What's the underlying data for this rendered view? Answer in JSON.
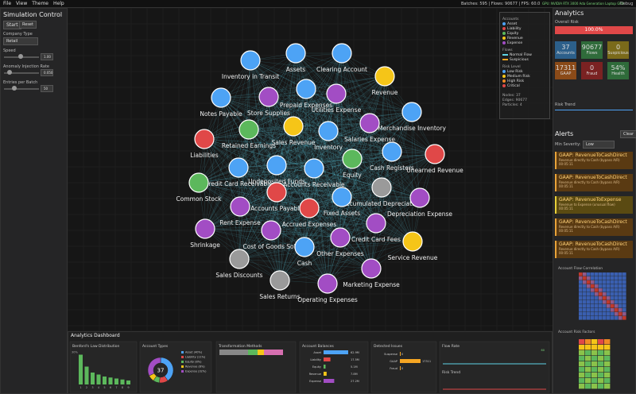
{
  "menu": [
    "File",
    "View",
    "Theme",
    "Help"
  ],
  "status": {
    "batches": "Batches: 595 | Flows: 90677 | FPS: 60.0",
    "gpu": "GPU: NVIDIA RTX 3000 Ada Generation Laptop GPU",
    "debug": "Debug"
  },
  "sim": {
    "title": "Simulation Control",
    "start": "Start",
    "reset": "Reset",
    "company_label": "Company Type",
    "company": "Retail",
    "speed_label": "Speed",
    "speed": "1.00",
    "anomaly_label": "Anomaly Injection Rate",
    "anomaly": "0.050",
    "entries_label": "Entries per Batch",
    "entries": "50"
  },
  "graph": {
    "nodes": [
      {
        "label": "Assets",
        "color": "#4da3f5"
      },
      {
        "label": "Clearing Account",
        "color": "#4da3f5"
      },
      {
        "label": "Inventory in Transit",
        "color": "#4da3f5"
      },
      {
        "label": "Revenue",
        "color": "#f5c518"
      },
      {
        "label": "Notes Payable",
        "color": "#4da3f5"
      },
      {
        "label": "Store Supplies",
        "color": "#a24dc4"
      },
      {
        "label": "Prepaid Expenses",
        "color": "#4da3f5"
      },
      {
        "label": "Utilities Expense",
        "color": "#a24dc4"
      },
      {
        "label": "Merchandise Inventory",
        "color": "#4da3f5"
      },
      {
        "label": "Sales Revenue",
        "color": "#f5c518"
      },
      {
        "label": "Retained Earnings",
        "color": "#5cb85c"
      },
      {
        "label": "Salaries Expense",
        "color": "#a24dc4"
      },
      {
        "label": "Inventory",
        "color": "#4da3f5"
      },
      {
        "label": "Liabilities",
        "color": "#e04848"
      },
      {
        "label": "Cash Registers",
        "color": "#4da3f5"
      },
      {
        "label": "Unearned Revenue",
        "color": "#e04848"
      },
      {
        "label": "Equity",
        "color": "#5cb85c"
      },
      {
        "label": "Undeposited Funds",
        "color": "#4da3f5"
      },
      {
        "label": "Accounts Receivable",
        "color": "#4da3f5"
      },
      {
        "label": "Credit Card Receivable",
        "color": "#4da3f5"
      },
      {
        "label": "Common Stock",
        "color": "#5cb85c"
      },
      {
        "label": "Accounts Payable",
        "color": "#e04848"
      },
      {
        "label": "Accumulated Depreciation",
        "color": "#9a9a9a"
      },
      {
        "label": "Depreciation Expense",
        "color": "#a24dc4"
      },
      {
        "label": "Fixed Assets",
        "color": "#4da3f5"
      },
      {
        "label": "Rent Expense",
        "color": "#a24dc4"
      },
      {
        "label": "Accrued Expenses",
        "color": "#e04848"
      },
      {
        "label": "Credit Card Fees",
        "color": "#a24dc4"
      },
      {
        "label": "Shrinkage",
        "color": "#a24dc4"
      },
      {
        "label": "Cost of Goods Sold",
        "color": "#a24dc4"
      },
      {
        "label": "Other Expenses",
        "color": "#a24dc4"
      },
      {
        "label": "Cash",
        "color": "#4da3f5"
      },
      {
        "label": "Service Revenue",
        "color": "#f5c518"
      },
      {
        "label": "Sales Discounts",
        "color": "#9a9a9a"
      },
      {
        "label": "Marketing Expense",
        "color": "#a24dc4"
      },
      {
        "label": "Sales Returns",
        "color": "#9a9a9a"
      },
      {
        "label": "Operating Expenses",
        "color": "#a24dc4"
      }
    ],
    "legend": {
      "accounts_title": "Accounts",
      "accounts": [
        {
          "label": "Asset",
          "color": "#4da3f5"
        },
        {
          "label": "Liability",
          "color": "#e04848"
        },
        {
          "label": "Equity",
          "color": "#5cb85c"
        },
        {
          "label": "Revenue",
          "color": "#f5c518"
        },
        {
          "label": "Expense",
          "color": "#a24dc4"
        }
      ],
      "flows_title": "Flows",
      "flows": [
        {
          "label": "Normal Flow",
          "color": "#5fd3e6"
        },
        {
          "label": "Suspicious",
          "color": "#f5a623"
        }
      ],
      "risk_title": "Risk Level",
      "risk": [
        {
          "label": "Low Risk",
          "color": "#4da3f5"
        },
        {
          "label": "Medium Risk",
          "color": "#f5c518"
        },
        {
          "label": "High Risk",
          "color": "#f08a24"
        },
        {
          "label": "Critical",
          "color": "#e04848"
        }
      ],
      "stats": [
        "Nodes: 37",
        "Edges: 90677",
        "Particles: 4"
      ]
    }
  },
  "analytics": {
    "title": "Analytics",
    "risk_title": "Overall Risk",
    "risk": 100,
    "risk_label": "100.0%",
    "tiles": [
      {
        "value": "37",
        "label": "Accounts",
        "color": "#2c5f8a"
      },
      {
        "value": "90677",
        "label": "Flows",
        "color": "#2f6b3a"
      },
      {
        "value": "0",
        "label": "Suspicious",
        "color": "#7a6a1a"
      },
      {
        "value": "17311",
        "label": "GAAP",
        "color": "#8a4a18"
      },
      {
        "value": "0",
        "label": "Fraud",
        "color": "#7a2222"
      },
      {
        "value": "54%",
        "label": "Health",
        "color": "#2f6b3a"
      }
    ],
    "trend_title": "Risk Trend"
  },
  "alerts": {
    "title": "Alerts",
    "clear": "Clear",
    "severity_label": "Min Severity:",
    "severity": "Low",
    "items": [
      {
        "title": "GAAP: RevenueToCashDirect",
        "desc": "Revenue directly to Cash (bypass A/R)",
        "time": "00:05:11"
      },
      {
        "title": "GAAP: RevenueToCashDirect",
        "desc": "Revenue directly to Cash (bypass A/R)",
        "time": "00:05:11"
      },
      {
        "title": "GAAP: RevenueToExpense",
        "desc": "Revenue to Expense (unusual flow)",
        "time": "00:05:11"
      },
      {
        "title": "GAAP: RevenueToCashDirect",
        "desc": "Revenue directly to Cash (bypass A/R)",
        "time": "00:05:11"
      },
      {
        "title": "GAAP: RevenueToCashDirect",
        "desc": "Revenue directly to Cash (bypass A/R)",
        "time": "00:05:11"
      }
    ],
    "correlation_title": "Account Flow Correlation",
    "risk_factors_title": "Account Risk Factors"
  },
  "dashboard": {
    "title": "Analytics Dashboard",
    "benford": {
      "title": "Benford's Law Distribution",
      "categories": [
        "1",
        "2",
        "3",
        "4",
        "5",
        "6",
        "7",
        "8",
        "9"
      ],
      "values": [
        30,
        18,
        12,
        10,
        8,
        7,
        6,
        5,
        4
      ],
      "color": "#5cb85c",
      "ylim": [
        0,
        32
      ],
      "yticks": [
        {
          "value": 30,
          "label": "30%"
        }
      ]
    },
    "types": {
      "title": "Account Types",
      "center": "37",
      "labels": [
        "Asset (40%)",
        "Liability (11%)",
        "Equity (8%)",
        "Revenue (8%)",
        "Expense (32%)"
      ],
      "values": [
        40,
        11,
        8,
        8,
        32
      ],
      "colors": [
        "#4da3f5",
        "#e04848",
        "#5cb85c",
        "#f5c518",
        "#a24dc4"
      ]
    },
    "methods": {
      "title": "Transformation Methods",
      "values": [
        45,
        15,
        10,
        30
      ],
      "colors": [
        "#888888",
        "#5cb85c",
        "#f5c518",
        "#d66fb0"
      ]
    },
    "balances": {
      "title": "Account Balances",
      "categories": [
        "Asset",
        "Liability",
        "Equity",
        "Revenue",
        "Expense"
      ],
      "values": [
        62900000,
        17500000,
        5100000,
        7800000,
        27200000
      ],
      "value_labels": [
        "62.9M",
        "17.5M",
        "5.1M",
        "7.8M",
        "27.2M"
      ],
      "colors": [
        "#4da3f5",
        "#e04848",
        "#5cb85c",
        "#f5c518",
        "#a24dc4"
      ],
      "xlim": [
        0,
        65000000
      ]
    },
    "issues": {
      "title": "Detected Issues",
      "categories": [
        "Suspense",
        "GAAP",
        "Fraud"
      ],
      "values": [
        0,
        17311,
        0
      ],
      "color": "#f5a623",
      "xlim": [
        0,
        20000
      ]
    },
    "flow_title": "Flow Rate",
    "flow_value": "60",
    "trend_title": "Risk Trend"
  }
}
